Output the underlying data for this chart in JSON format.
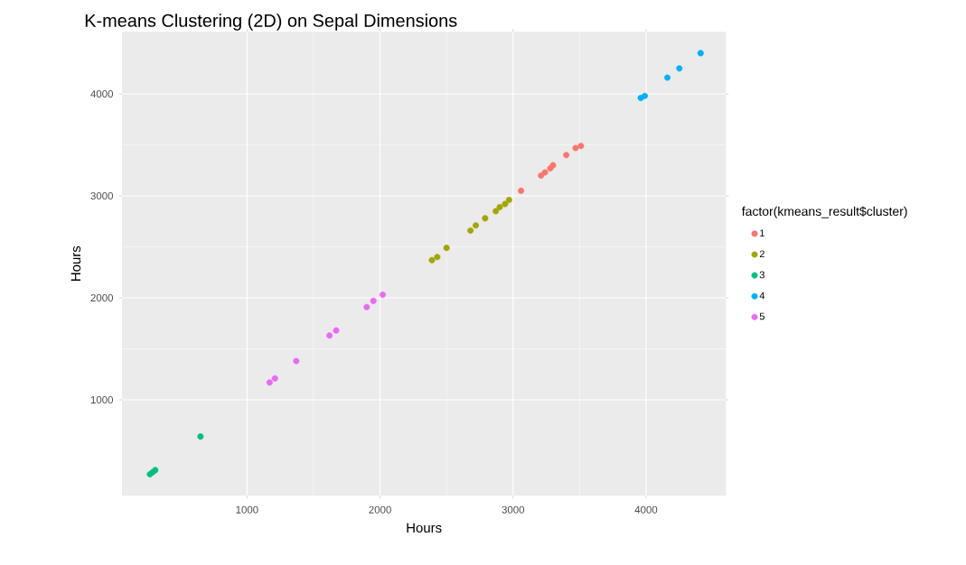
{
  "chart_data": {
    "type": "scatter",
    "title": "K-means Clustering (2D) on Sepal Dimensions",
    "xlabel": "Hours",
    "ylabel": "Hours",
    "legend_title": "factor(kmeans_result$cluster)",
    "xlim": [
      60,
      4600
    ],
    "ylim": [
      60,
      4610
    ],
    "xticks": [
      1000,
      2000,
      3000,
      4000
    ],
    "yticks": [
      1000,
      2000,
      3000,
      4000
    ],
    "grid": true,
    "legend": "right",
    "marker": "circle",
    "series": [
      {
        "name": "1",
        "color": "#f8766d",
        "x": [
          3060,
          3210,
          3240,
          3280,
          3300,
          3400,
          3470,
          3510
        ],
        "values": [
          3050,
          3200,
          3230,
          3270,
          3300,
          3400,
          3470,
          3490
        ]
      },
      {
        "name": "2",
        "color": "#a3a500",
        "x": [
          2390,
          2430,
          2500,
          2680,
          2720,
          2790,
          2870,
          2900,
          2940,
          2970
        ],
        "values": [
          2370,
          2400,
          2490,
          2660,
          2710,
          2780,
          2850,
          2890,
          2920,
          2960
        ]
      },
      {
        "name": "3",
        "color": "#00bf7d",
        "x": [
          270,
          290,
          310,
          650
        ],
        "values": [
          270,
          290,
          310,
          640
        ]
      },
      {
        "name": "4",
        "color": "#00b0f6",
        "x": [
          3960,
          3990,
          4160,
          4250,
          4410
        ],
        "values": [
          3960,
          3980,
          4160,
          4250,
          4400
        ]
      },
      {
        "name": "5",
        "color": "#e76bf3",
        "x": [
          1170,
          1210,
          1370,
          1620,
          1670,
          1900,
          1950,
          2020
        ],
        "values": [
          1170,
          1210,
          1380,
          1630,
          1680,
          1910,
          1970,
          2030
        ]
      }
    ]
  }
}
